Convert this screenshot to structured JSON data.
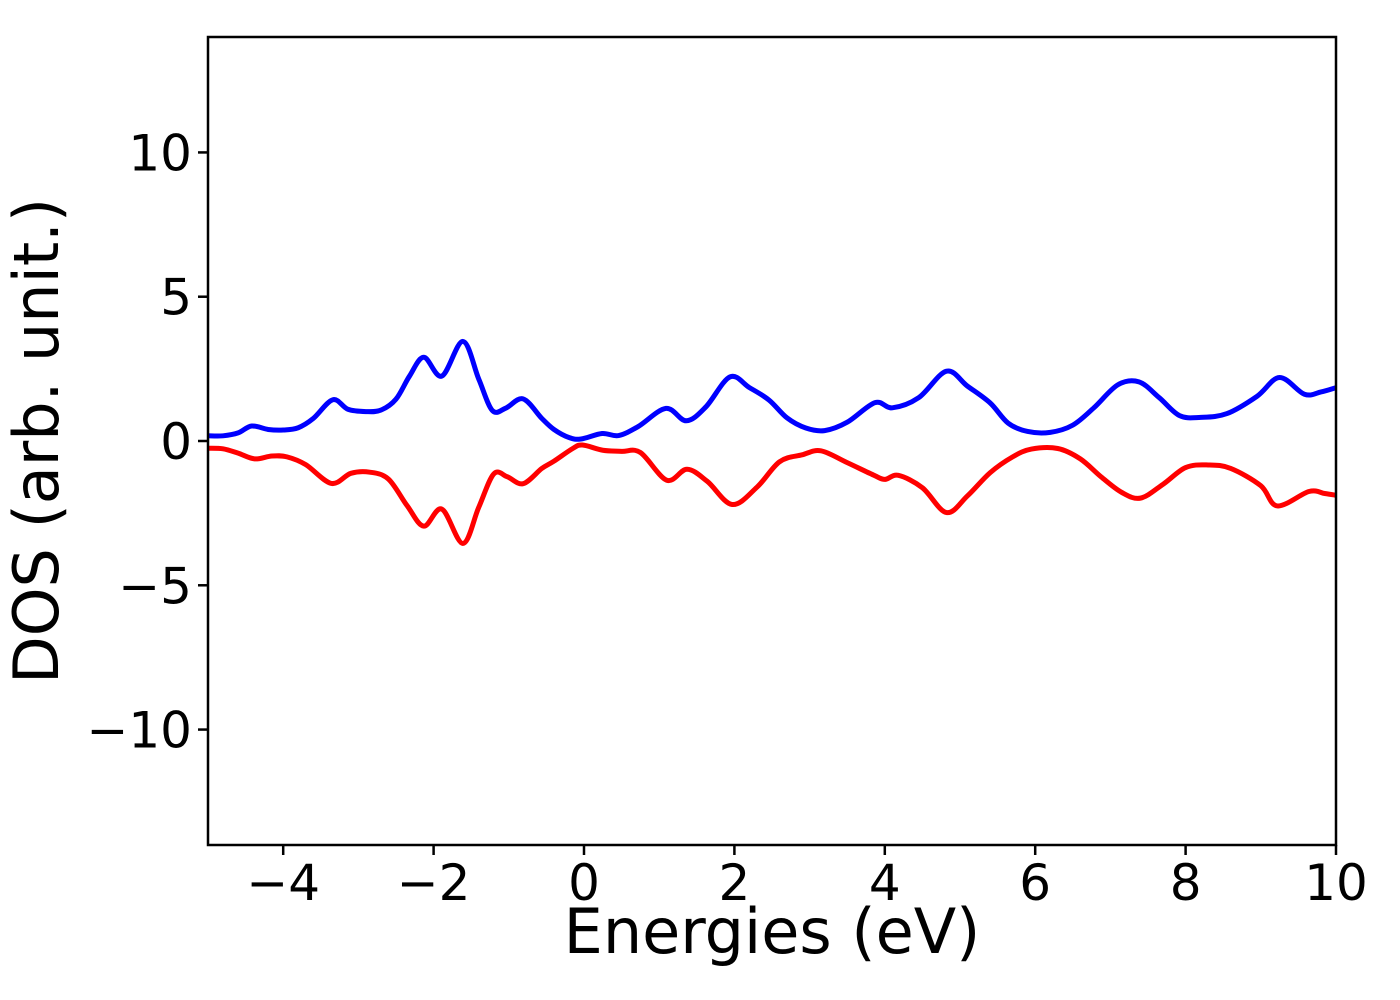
{
  "figure": {
    "background": "#ffffff"
  },
  "chart_data": {
    "type": "line",
    "title": "",
    "xlabel": "Energies (eV)",
    "ylabel": "DOS (arb. unit.)",
    "xlim": [
      -5,
      10
    ],
    "ylim": [
      -14,
      14
    ],
    "xticks": [
      -4,
      -2,
      0,
      2,
      4,
      6,
      8,
      10
    ],
    "yticks": [
      -10,
      -5,
      0,
      5,
      10
    ],
    "grid": false,
    "legend": null,
    "axis_color": "#000000",
    "series": [
      {
        "name": "blue",
        "color": "#0000ff",
        "points": [
          [
            -5.0,
            0.18
          ],
          [
            -4.8,
            0.18
          ],
          [
            -4.6,
            0.28
          ],
          [
            -4.42,
            0.52
          ],
          [
            -4.2,
            0.4
          ],
          [
            -4.0,
            0.38
          ],
          [
            -3.8,
            0.46
          ],
          [
            -3.6,
            0.78
          ],
          [
            -3.34,
            1.43
          ],
          [
            -3.14,
            1.1
          ],
          [
            -2.9,
            1.02
          ],
          [
            -2.7,
            1.07
          ],
          [
            -2.5,
            1.45
          ],
          [
            -2.32,
            2.25
          ],
          [
            -2.13,
            2.9
          ],
          [
            -1.89,
            2.25
          ],
          [
            -1.61,
            3.45
          ],
          [
            -1.4,
            2.15
          ],
          [
            -1.22,
            1.06
          ],
          [
            -1.04,
            1.14
          ],
          [
            -0.81,
            1.46
          ],
          [
            -0.56,
            0.78
          ],
          [
            -0.4,
            0.4
          ],
          [
            -0.2,
            0.12
          ],
          [
            -0.04,
            0.07
          ],
          [
            0.24,
            0.26
          ],
          [
            0.46,
            0.19
          ],
          [
            0.72,
            0.5
          ],
          [
            1.09,
            1.13
          ],
          [
            1.36,
            0.7
          ],
          [
            1.62,
            1.18
          ],
          [
            1.94,
            2.22
          ],
          [
            2.2,
            1.85
          ],
          [
            2.46,
            1.42
          ],
          [
            2.7,
            0.8
          ],
          [
            2.95,
            0.45
          ],
          [
            3.2,
            0.36
          ],
          [
            3.5,
            0.65
          ],
          [
            3.87,
            1.33
          ],
          [
            4.1,
            1.15
          ],
          [
            4.45,
            1.5
          ],
          [
            4.82,
            2.42
          ],
          [
            5.1,
            1.9
          ],
          [
            5.4,
            1.32
          ],
          [
            5.64,
            0.62
          ],
          [
            5.9,
            0.33
          ],
          [
            6.2,
            0.3
          ],
          [
            6.5,
            0.55
          ],
          [
            6.78,
            1.15
          ],
          [
            7.1,
            1.95
          ],
          [
            7.38,
            2.05
          ],
          [
            7.65,
            1.5
          ],
          [
            7.92,
            0.88
          ],
          [
            8.2,
            0.82
          ],
          [
            8.55,
            0.95
          ],
          [
            8.95,
            1.55
          ],
          [
            9.25,
            2.2
          ],
          [
            9.58,
            1.62
          ],
          [
            9.8,
            1.7
          ],
          [
            10.0,
            1.85
          ]
        ]
      },
      {
        "name": "red",
        "color": "#ff0000",
        "points": [
          [
            -5.0,
            -0.25
          ],
          [
            -4.8,
            -0.27
          ],
          [
            -4.6,
            -0.42
          ],
          [
            -4.38,
            -0.62
          ],
          [
            -4.15,
            -0.52
          ],
          [
            -3.95,
            -0.55
          ],
          [
            -3.7,
            -0.82
          ],
          [
            -3.36,
            -1.47
          ],
          [
            -3.1,
            -1.12
          ],
          [
            -2.85,
            -1.08
          ],
          [
            -2.6,
            -1.32
          ],
          [
            -2.35,
            -2.25
          ],
          [
            -2.13,
            -2.95
          ],
          [
            -1.89,
            -2.36
          ],
          [
            -1.61,
            -3.55
          ],
          [
            -1.4,
            -2.3
          ],
          [
            -1.2,
            -1.14
          ],
          [
            -1.02,
            -1.24
          ],
          [
            -0.81,
            -1.48
          ],
          [
            -0.56,
            -0.95
          ],
          [
            -0.4,
            -0.7
          ],
          [
            -0.15,
            -0.26
          ],
          [
            -0.02,
            -0.14
          ],
          [
            0.25,
            -0.32
          ],
          [
            0.5,
            -0.36
          ],
          [
            0.75,
            -0.4
          ],
          [
            1.1,
            -1.36
          ],
          [
            1.37,
            -0.98
          ],
          [
            1.64,
            -1.4
          ],
          [
            1.97,
            -2.2
          ],
          [
            2.3,
            -1.6
          ],
          [
            2.6,
            -0.72
          ],
          [
            2.9,
            -0.48
          ],
          [
            3.15,
            -0.34
          ],
          [
            3.5,
            -0.75
          ],
          [
            3.85,
            -1.18
          ],
          [
            4.0,
            -1.33
          ],
          [
            4.18,
            -1.19
          ],
          [
            4.5,
            -1.62
          ],
          [
            4.82,
            -2.48
          ],
          [
            5.1,
            -1.9
          ],
          [
            5.4,
            -1.1
          ],
          [
            5.7,
            -0.55
          ],
          [
            5.95,
            -0.28
          ],
          [
            6.3,
            -0.26
          ],
          [
            6.6,
            -0.62
          ],
          [
            6.88,
            -1.25
          ],
          [
            7.15,
            -1.78
          ],
          [
            7.4,
            -1.98
          ],
          [
            7.7,
            -1.5
          ],
          [
            8.0,
            -0.92
          ],
          [
            8.3,
            -0.83
          ],
          [
            8.6,
            -0.95
          ],
          [
            9.0,
            -1.55
          ],
          [
            9.22,
            -2.25
          ],
          [
            9.64,
            -1.75
          ],
          [
            9.85,
            -1.82
          ],
          [
            10.0,
            -1.88
          ]
        ]
      }
    ]
  }
}
